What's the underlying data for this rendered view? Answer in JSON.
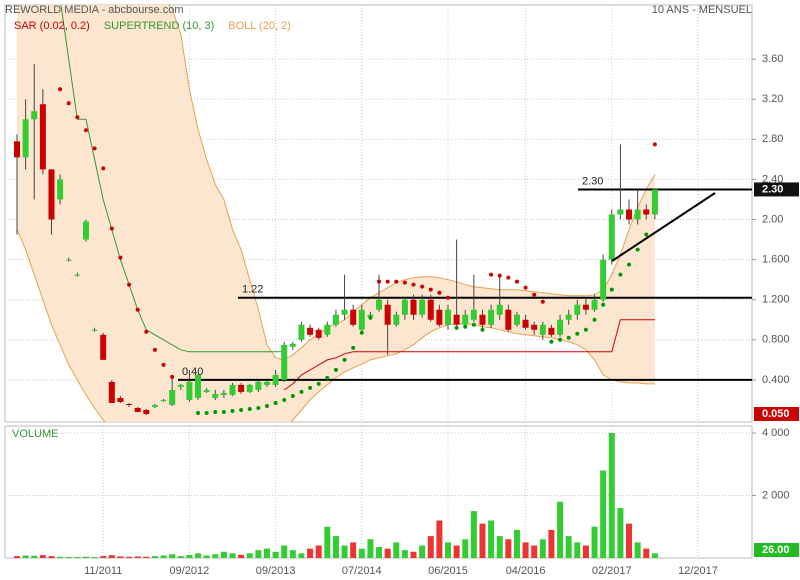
{
  "chart_data": [
    {
      "type": "candlestick",
      "title": "REWORLD MEDIA - abcbourse.com",
      "subtitle": "10 ANS - MENSUEL",
      "categories": [
        null,
        null,
        null,
        null,
        null,
        null,
        null,
        null,
        null,
        null,
        "11/2011",
        null,
        null,
        null,
        null,
        null,
        null,
        null,
        null,
        null,
        "09/2012",
        null,
        null,
        null,
        null,
        null,
        null,
        null,
        null,
        null,
        "09/2013",
        null,
        null,
        null,
        null,
        null,
        null,
        null,
        null,
        null,
        "07/2014",
        null,
        null,
        null,
        null,
        null,
        null,
        null,
        null,
        null,
        "06/2015",
        null,
        null,
        null,
        null,
        null,
        null,
        null,
        null,
        "04/2016",
        null,
        null,
        null,
        null,
        null,
        null,
        null,
        null,
        null,
        "02/2017",
        null,
        null,
        null,
        null,
        null,
        null,
        null,
        null,
        null,
        "12/2017"
      ],
      "open": [
        2.78,
        2.62,
        3.0,
        3.15,
        2.5,
        2.2,
        1.6,
        1.45,
        1.8,
        0.9,
        0.85,
        0.38,
        0.22,
        0.16,
        0.12,
        0.1,
        0.13,
        0.19,
        0.15,
        0.33,
        0.2,
        0.22,
        0.28,
        0.22,
        0.25,
        0.25,
        0.35,
        0.28,
        0.3,
        0.35,
        0.35,
        0.4,
        0.73,
        0.8,
        0.92,
        0.9,
        0.85,
        0.95,
        1.05,
        1.1,
        0.9,
        1.03,
        1.1,
        1.15,
        0.95,
        1.05,
        1.2,
        1.05,
        1.2,
        1.1,
        0.95,
        1.05,
        0.95,
        1.0,
        1.05,
        0.95,
        1.05,
        1.1,
        0.95,
        1.0,
        0.95,
        0.85,
        0.92,
        0.85,
        1.0,
        1.05,
        1.15,
        1.1,
        1.2,
        1.6,
        2.05,
        2.1,
        2.0,
        2.1,
        2.05,
        null,
        null,
        null,
        null,
        null
      ],
      "high": [
        2.85,
        3.2,
        3.55,
        3.3,
        2.5,
        2.45,
        1.62,
        1.47,
        2.0,
        0.92,
        0.87,
        0.4,
        0.24,
        0.17,
        0.13,
        0.11,
        0.16,
        0.21,
        0.45,
        0.36,
        0.5,
        0.46,
        0.32,
        0.3,
        0.3,
        0.37,
        0.37,
        0.36,
        0.4,
        0.4,
        0.5,
        0.78,
        0.78,
        0.98,
        0.95,
        0.92,
        0.98,
        1.1,
        1.45,
        1.15,
        1.15,
        1.08,
        1.45,
        1.2,
        1.08,
        1.22,
        1.25,
        1.25,
        1.25,
        1.15,
        1.15,
        1.8,
        1.1,
        1.45,
        1.1,
        1.15,
        1.45,
        1.15,
        1.08,
        1.05,
        0.98,
        0.98,
        0.95,
        1.05,
        1.1,
        1.2,
        1.22,
        1.25,
        1.65,
        2.1,
        2.75,
        2.2,
        2.3,
        2.15,
        2.3,
        null,
        null,
        null,
        null,
        null
      ],
      "low": [
        1.85,
        2.5,
        2.2,
        2.45,
        1.85,
        2.15,
        1.58,
        1.43,
        1.78,
        0.88,
        0.6,
        0.17,
        0.17,
        0.13,
        0.08,
        0.05,
        0.12,
        0.18,
        0.14,
        0.3,
        0.18,
        0.2,
        0.27,
        0.2,
        0.22,
        0.24,
        0.26,
        0.27,
        0.28,
        0.33,
        0.33,
        0.38,
        0.7,
        0.78,
        0.83,
        0.8,
        0.83,
        0.93,
        1.0,
        0.93,
        0.88,
        1.0,
        1.08,
        0.65,
        0.93,
        1.0,
        1.0,
        1.02,
        0.98,
        0.93,
        0.9,
        0.9,
        0.93,
        0.98,
        0.9,
        0.92,
        1.0,
        0.88,
        0.93,
        0.9,
        0.85,
        0.8,
        0.83,
        0.83,
        0.95,
        1.0,
        1.05,
        1.08,
        1.18,
        1.55,
        2.0,
        1.95,
        1.95,
        2.0,
        2.0,
        null,
        null,
        null,
        null,
        null
      ],
      "close": [
        2.62,
        3.0,
        3.08,
        2.5,
        2.0,
        2.4,
        1.6,
        1.45,
        1.98,
        0.9,
        0.6,
        0.17,
        0.18,
        0.15,
        0.08,
        0.06,
        0.15,
        0.2,
        0.3,
        0.35,
        0.38,
        0.45,
        0.3,
        0.26,
        0.27,
        0.35,
        0.28,
        0.35,
        0.38,
        0.38,
        0.45,
        0.75,
        0.76,
        0.95,
        0.85,
        0.82,
        0.95,
        1.05,
        1.1,
        0.95,
        1.1,
        1.05,
        1.2,
        0.95,
        1.05,
        1.2,
        1.05,
        1.2,
        1.0,
        0.95,
        1.1,
        0.95,
        1.05,
        1.1,
        0.95,
        1.1,
        1.15,
        0.9,
        1.05,
        0.92,
        0.9,
        0.95,
        0.85,
        1.0,
        1.05,
        1.15,
        1.1,
        1.2,
        1.6,
        2.05,
        2.1,
        2.0,
        2.1,
        2.05,
        2.3,
        null,
        null,
        null,
        null,
        null
      ],
      "up_color": "#33cc33",
      "down_color": "#cc0000",
      "wick_color": "#444444",
      "overlays": [
        {
          "type": "sar",
          "name": "SAR (0.02, 0.2)",
          "color": "#cc0000",
          "below_color": "#009900",
          "values": [
            null,
            null,
            null,
            null,
            null,
            3.3,
            3.16,
            3.02,
            2.89,
            2.71,
            2.51,
            1.91,
            1.62,
            1.35,
            1.1,
            0.88,
            0.7,
            0.55,
            0.43,
            null,
            null,
            0.07,
            0.07,
            0.08,
            0.08,
            0.09,
            0.1,
            0.11,
            0.12,
            0.14,
            0.17,
            0.2,
            0.24,
            0.28,
            0.32,
            0.36,
            0.42,
            0.5,
            0.6,
            0.72,
            0.87,
            1.02,
            1.38,
            1.38,
            1.38,
            1.37,
            1.35,
            1.33,
            1.3,
            1.27,
            1.22,
            0.92,
            0.93,
            0.95,
            0.9,
            1.45,
            1.44,
            1.42,
            1.38,
            1.32,
            1.25,
            1.18,
            0.78,
            0.8,
            0.82,
            0.86,
            0.9,
            1.0,
            1.15,
            1.3,
            1.45,
            1.55,
            1.7,
            1.85,
            2.75,
            null,
            null,
            null,
            null,
            null
          ]
        },
        {
          "type": "line",
          "name": "SUPERTREND (10, 3)",
          "color": "#339933",
          "values": [
            null,
            null,
            null,
            null,
            null,
            4.2,
            3.6,
            3.0,
            3.0,
            2.6,
            2.2,
            1.9,
            1.6,
            1.35,
            1.1,
            0.9,
            0.85,
            0.8,
            0.75,
            0.7,
            0.68,
            0.68,
            0.68,
            0.68,
            0.68,
            0.68,
            0.68,
            0.68,
            0.68,
            0.68,
            0.68,
            0.68,
            null,
            null,
            null,
            null,
            null,
            null,
            null,
            null,
            null,
            null,
            null,
            null,
            null,
            null,
            null,
            null,
            null,
            null,
            null,
            null,
            null,
            null,
            null,
            null,
            null,
            null,
            null,
            null,
            null,
            null,
            null,
            null,
            null,
            null,
            null,
            null,
            null,
            null,
            null,
            null,
            null,
            null,
            null,
            null,
            null,
            null,
            null,
            null
          ]
        },
        {
          "type": "line",
          "color": "#cc0000",
          "values": [
            null,
            null,
            null,
            null,
            null,
            null,
            null,
            null,
            null,
            null,
            null,
            null,
            null,
            null,
            null,
            null,
            null,
            null,
            null,
            null,
            null,
            null,
            null,
            null,
            null,
            null,
            null,
            null,
            null,
            null,
            null,
            0.3,
            0.36,
            0.45,
            0.5,
            0.55,
            0.6,
            0.62,
            0.66,
            0.68,
            0.68,
            0.68,
            0.68,
            0.68,
            0.68,
            0.68,
            0.68,
            0.68,
            0.68,
            0.68,
            0.68,
            0.68,
            0.68,
            0.68,
            0.68,
            0.68,
            0.68,
            0.68,
            0.68,
            0.68,
            0.68,
            0.68,
            0.68,
            0.68,
            0.68,
            0.68,
            0.68,
            0.68,
            0.68,
            0.68,
            1.0,
            1.0,
            1.0,
            1.0,
            1.0,
            null,
            null,
            null,
            null,
            null
          ]
        },
        {
          "type": "band",
          "name": "BOLL (20, 2)",
          "color": "#e8a050",
          "fill": "#fde6d0",
          "values": [
            4.5,
            4.5,
            4.5,
            4.5,
            4.5,
            4.5,
            4.5,
            4.5,
            4.5,
            4.5,
            4.5,
            4.5,
            4.5,
            4.5,
            4.5,
            4.4,
            4.3,
            4.2,
            4.1,
            3.85,
            3.3,
            2.9,
            2.6,
            2.35,
            2.2,
            1.9,
            1.7,
            1.4,
            1.1,
            0.75,
            0.62,
            0.6,
            0.65,
            0.72,
            0.8,
            0.86,
            0.92,
            0.96,
            1.0,
            1.08,
            1.15,
            1.22,
            1.27,
            1.32,
            1.37,
            1.4,
            1.42,
            1.43,
            1.43,
            1.42,
            1.4,
            1.38,
            1.35,
            1.33,
            1.32,
            1.31,
            1.3,
            1.3,
            1.3,
            1.29,
            1.28,
            1.27,
            1.26,
            1.25,
            1.24,
            1.24,
            1.24,
            1.25,
            1.3,
            1.45,
            1.65,
            1.9,
            2.12,
            2.3,
            2.45,
            null,
            null,
            null,
            null,
            null
          ],
          "lower": [
            1.9,
            1.7,
            1.45,
            1.2,
            0.95,
            0.75,
            0.55,
            0.4,
            0.25,
            0.12,
            0.0,
            -0.1,
            -0.2,
            -0.2,
            -0.2,
            -0.2,
            -0.2,
            -0.2,
            -0.2,
            -0.2,
            -0.2,
            -0.2,
            -0.2,
            -0.2,
            -0.2,
            -0.2,
            -0.2,
            -0.2,
            -0.2,
            -0.2,
            -0.15,
            -0.1,
            0.0,
            0.1,
            0.2,
            0.28,
            0.35,
            0.42,
            0.48,
            0.52,
            0.56,
            0.6,
            0.62,
            0.64,
            0.66,
            0.7,
            0.75,
            0.82,
            0.88,
            0.92,
            0.95,
            0.96,
            0.96,
            0.95,
            0.93,
            0.92,
            0.9,
            0.88,
            0.86,
            0.85,
            0.84,
            0.83,
            0.82,
            0.8,
            0.78,
            0.75,
            0.7,
            0.6,
            0.45,
            0.4,
            0.38,
            0.37,
            0.37,
            0.36,
            0.36,
            null,
            null,
            null,
            null,
            null
          ]
        }
      ],
      "ylim": [
        -0.02,
        4.14
      ],
      "yticks": [
        {
          "value": 3.6,
          "label": "3.60"
        },
        {
          "value": 3.2,
          "label": "3.20"
        },
        {
          "value": 2.8,
          "label": "2.80"
        },
        {
          "value": 2.4,
          "label": "2.40"
        },
        {
          "value": 2,
          "label": "2.00"
        },
        {
          "value": 1.6,
          "label": "1.600"
        },
        {
          "value": 1.2,
          "label": "1.200"
        },
        {
          "value": 0.8,
          "label": "0.800"
        },
        {
          "value": 0.4,
          "label": "0.400"
        }
      ],
      "hlines": [
        {
          "value": 2.3,
          "label": "2.30"
        },
        {
          "value": 1.22,
          "label": "1.22"
        },
        {
          "value": 0.4,
          "label": "0.40"
        }
      ],
      "last_price": {
        "value": 2.3,
        "label": "2.30",
        "color": "#111111"
      },
      "min_price": {
        "value": 0.05,
        "label": "0.050",
        "color": "#cc0000"
      },
      "grid": true
    },
    {
      "type": "bar",
      "title": "VOLUME",
      "up_color": "#33cc33",
      "down_color": "#ee3333",
      "values": [
        60,
        80,
        70,
        90,
        60,
        40,
        30,
        30,
        40,
        30,
        60,
        90,
        50,
        40,
        50,
        40,
        60,
        80,
        120,
        60,
        100,
        150,
        80,
        120,
        200,
        150,
        100,
        150,
        250,
        300,
        200,
        400,
        250,
        150,
        300,
        400,
        1000,
        700,
        400,
        500,
        300,
        600,
        350,
        300,
        500,
        250,
        200,
        400,
        700,
        1200,
        500,
        400,
        600,
        1500,
        1100,
        1200,
        700,
        600,
        900,
        500,
        400,
        600,
        900,
        1800,
        700,
        500,
        400,
        1000,
        2800,
        4000,
        1600,
        1100,
        500,
        300,
        150,
        null,
        null,
        null,
        null,
        null
      ],
      "ylim": [
        0,
        4225
      ],
      "yticks": [
        {
          "value": 4000,
          "label": "4 000"
        },
        {
          "value": 2000,
          "label": "2 000"
        }
      ],
      "last_value": {
        "value": 26,
        "label": "26.00",
        "color": "#22bb22"
      },
      "grid": true
    }
  ]
}
